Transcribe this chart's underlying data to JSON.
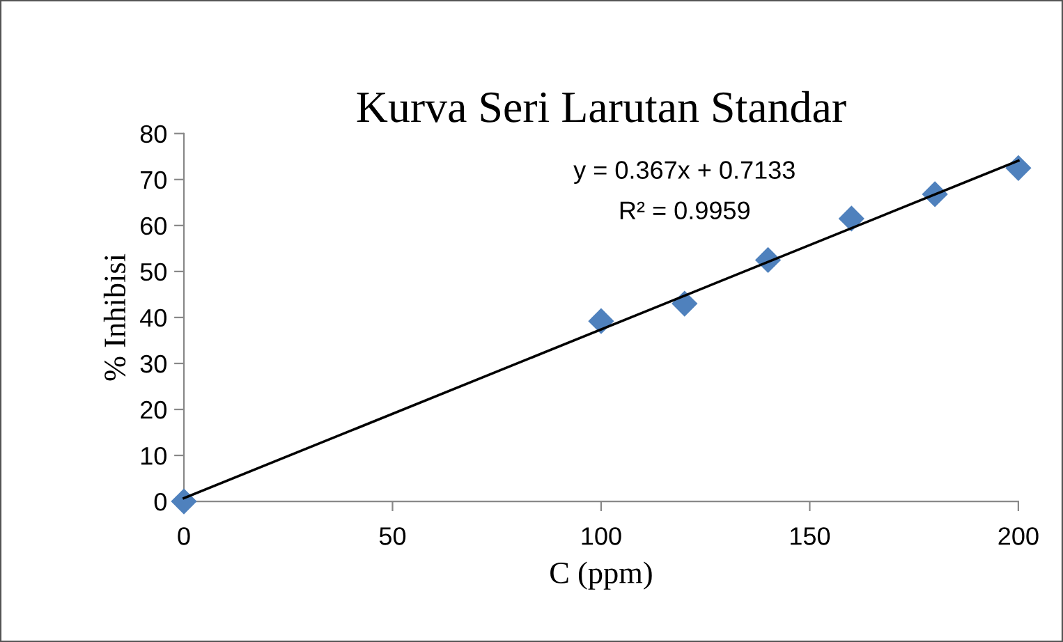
{
  "chart_data": {
    "type": "scatter",
    "title": "Kurva Seri Larutan Standar",
    "xlabel": "C (ppm)",
    "ylabel": "% Inhibisi",
    "series": [
      {
        "color": "#4f81bd",
        "marker": "diamond",
        "x": [
          0,
          100,
          120,
          140,
          160,
          180,
          200
        ],
        "values": [
          0,
          39.2,
          43,
          52.5,
          61.5,
          66.8,
          72.5
        ]
      },
      {
        "type": "line",
        "color": "#000000",
        "marker": "none",
        "line_style": "solid",
        "x": [
          0,
          200
        ],
        "values": [
          0.7,
          74.1
        ]
      }
    ],
    "annotations": [
      "y = 0.367x + 0.7133",
      "R² = 0.9959"
    ],
    "xlim": [
      0,
      200
    ],
    "xticks": [
      0,
      50,
      100,
      150,
      200
    ],
    "ylim": [
      0,
      80
    ],
    "yticks": [
      0,
      10,
      20,
      30,
      40,
      50,
      60,
      70,
      80
    ],
    "grid": false,
    "legend": false
  }
}
